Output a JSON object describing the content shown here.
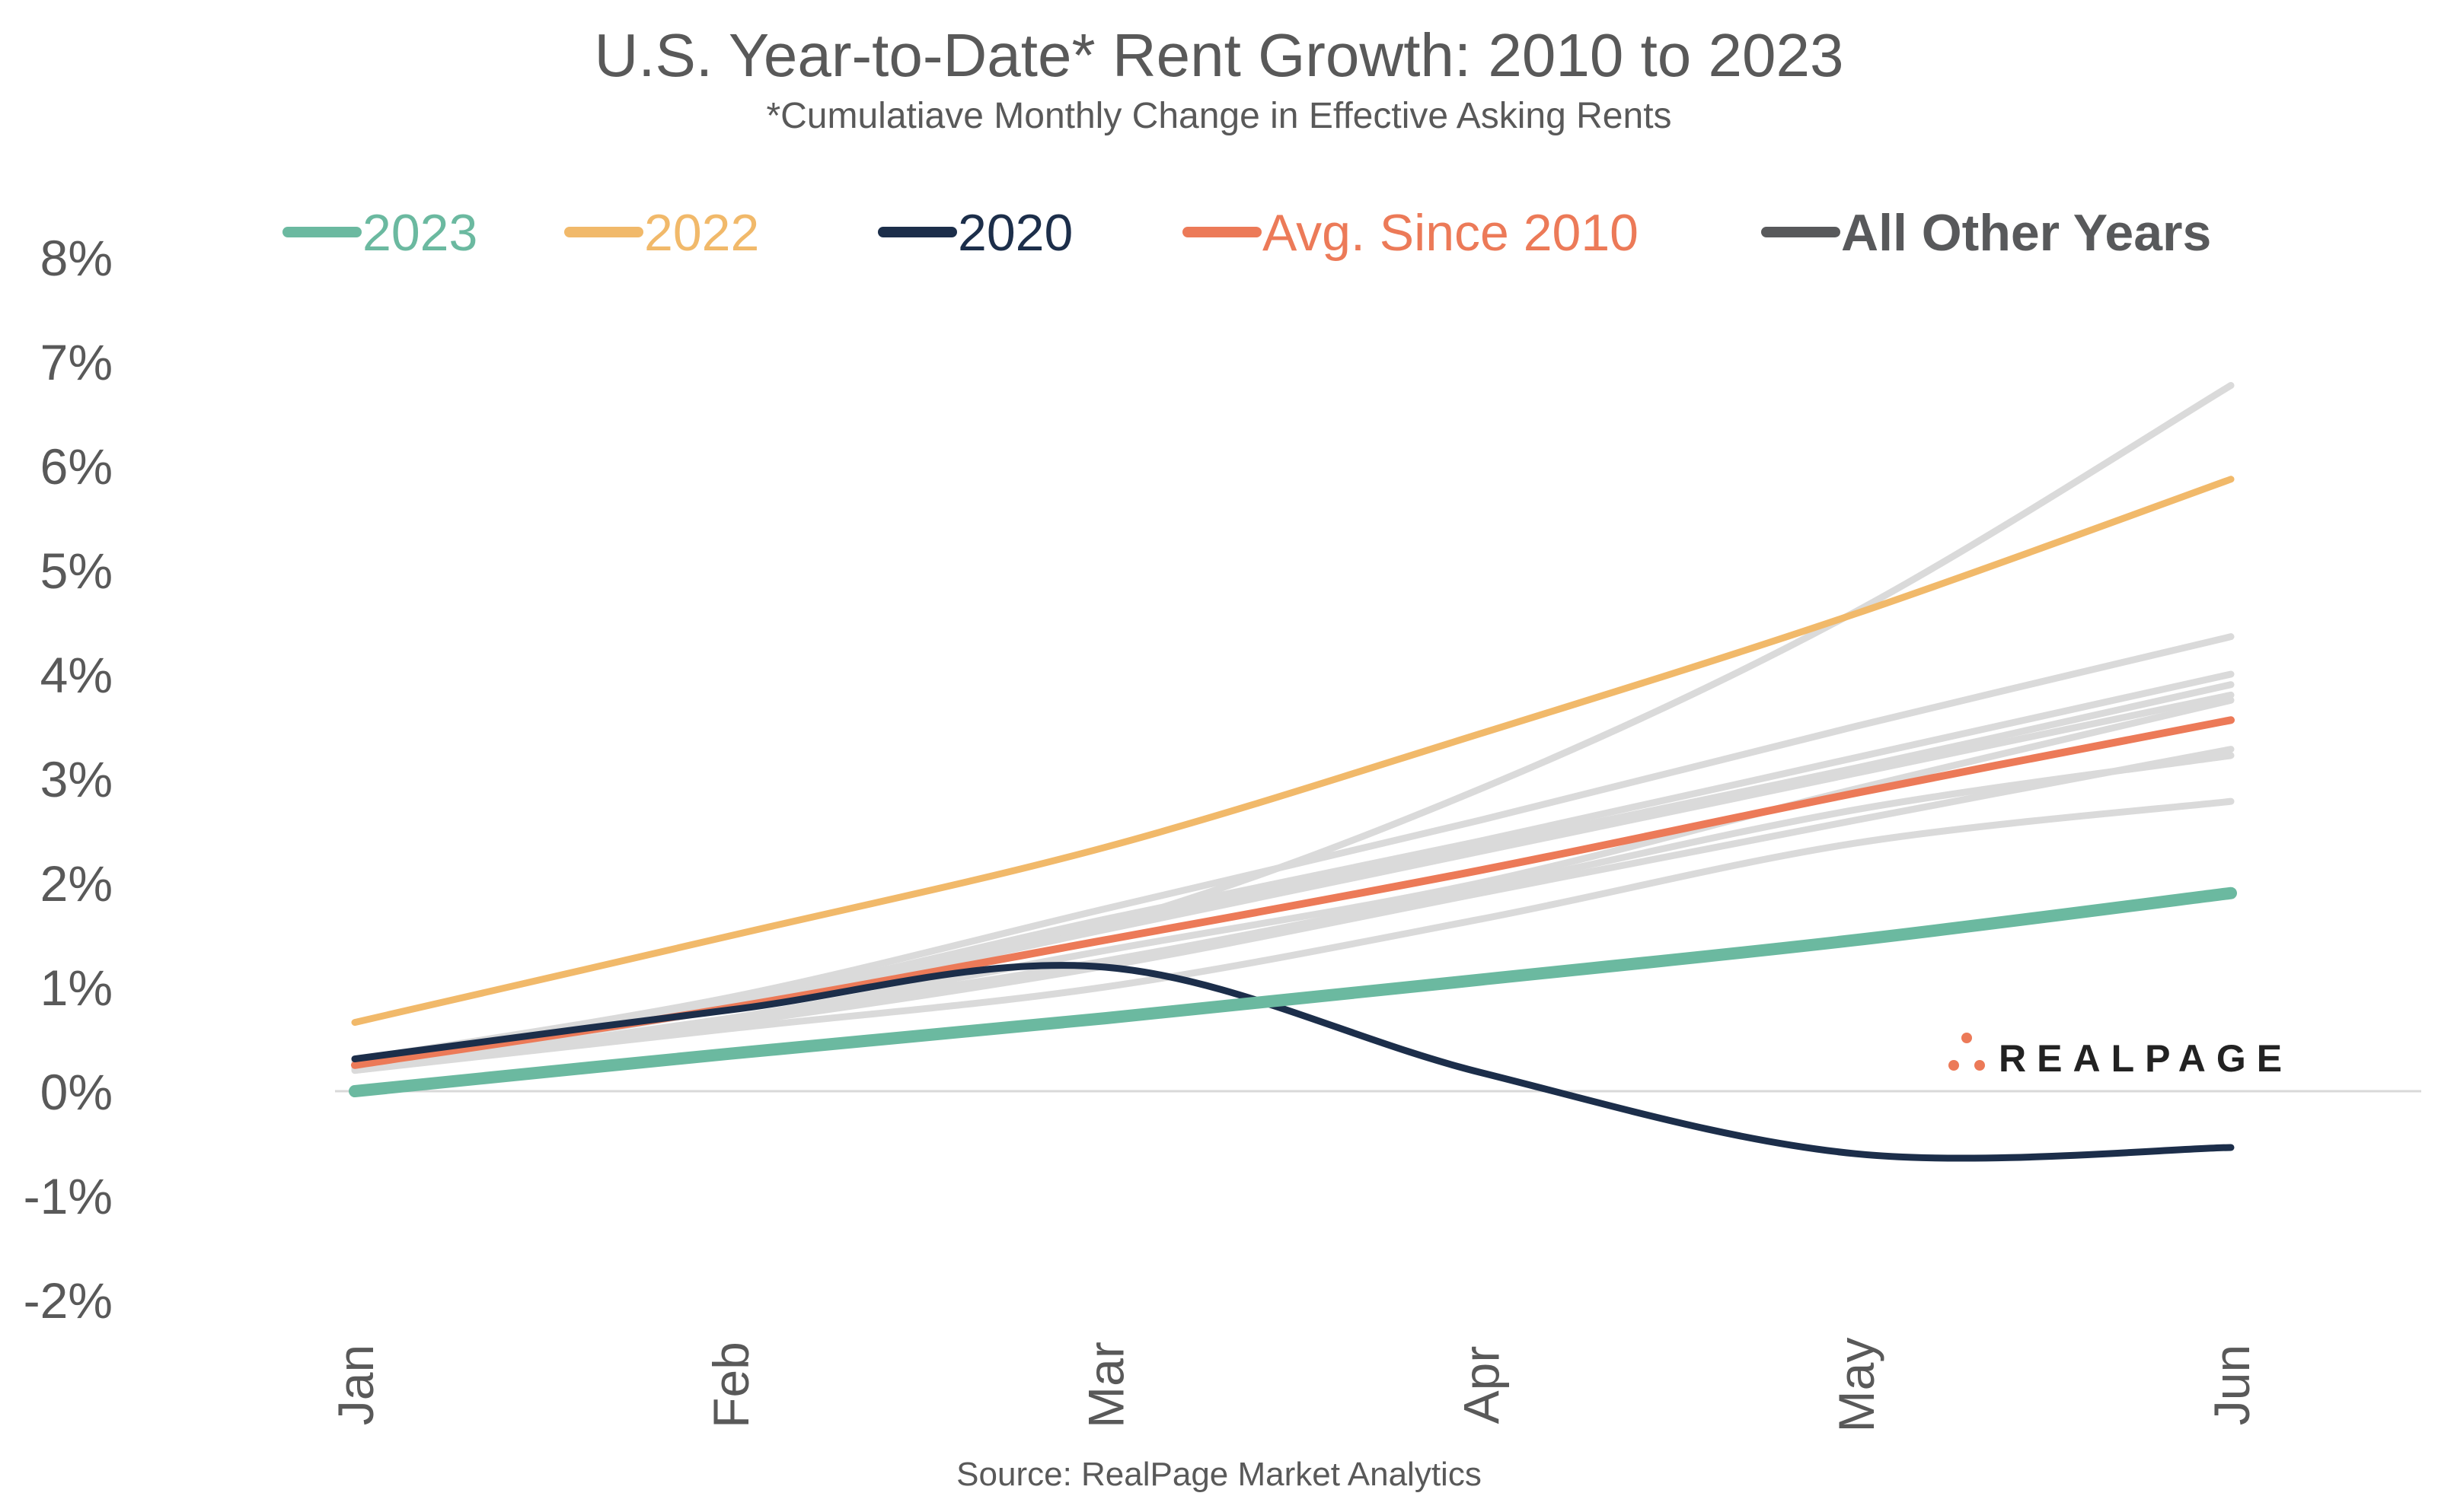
{
  "chart_data": {
    "type": "line",
    "title": "U.S. Year-to-Date* Rent Growth: 2010 to 2023",
    "subtitle": "*Cumulatiave Monthly Change in Effective Asking Rents",
    "source": "Source: RealPage Market Analytics",
    "logo": "REALPAGE",
    "categories": [
      "Jan",
      "Feb",
      "Mar",
      "Apr",
      "May",
      "Jun"
    ],
    "y_ticks": [
      "8%",
      "7%",
      "6%",
      "5%",
      "4%",
      "3%",
      "2%",
      "1%",
      "0%",
      "-1%",
      "-2%"
    ],
    "ylim": [
      -2,
      8
    ],
    "y_unit": "%",
    "grid": false,
    "legend_position": "top",
    "series": [
      {
        "name": "2023",
        "color": "#6BB9A0",
        "values": [
          0.0,
          0.36,
          0.7,
          1.07,
          1.45,
          1.9
        ]
      },
      {
        "name": "2022",
        "color": "#F1B96A",
        "values": [
          0.66,
          1.49,
          2.34,
          3.43,
          4.58,
          5.87
        ]
      },
      {
        "name": "2020",
        "color": "#1C2E4A",
        "values": [
          0.31,
          0.78,
          1.19,
          0.18,
          -0.6,
          -0.54
        ]
      },
      {
        "name": "Avg. Since 2010",
        "color": "#EC7A58",
        "values": [
          0.25,
          0.8,
          1.45,
          2.12,
          2.86,
          3.56
        ]
      }
    ],
    "other_years": {
      "name": "All Other Years",
      "color": "#DADADA",
      "legend_color": "#58595B",
      "series": [
        [
          0.3,
          0.85,
          1.6,
          2.9,
          4.6,
          6.77
        ],
        [
          0.3,
          0.9,
          1.75,
          2.6,
          3.5,
          4.36
        ],
        [
          0.28,
          0.85,
          1.65,
          2.4,
          3.2,
          4.0
        ],
        [
          0.25,
          0.8,
          1.6,
          2.35,
          3.1,
          3.9
        ],
        [
          0.25,
          0.8,
          1.55,
          2.3,
          3.05,
          3.8
        ],
        [
          0.22,
          0.7,
          1.35,
          2.0,
          2.9,
          3.75
        ],
        [
          0.2,
          0.65,
          1.2,
          1.9,
          2.6,
          3.28
        ],
        [
          0.2,
          0.7,
          1.25,
          1.95,
          2.7,
          3.22
        ],
        [
          0.2,
          0.6,
          1.0,
          1.65,
          2.38,
          2.78
        ]
      ]
    }
  }
}
